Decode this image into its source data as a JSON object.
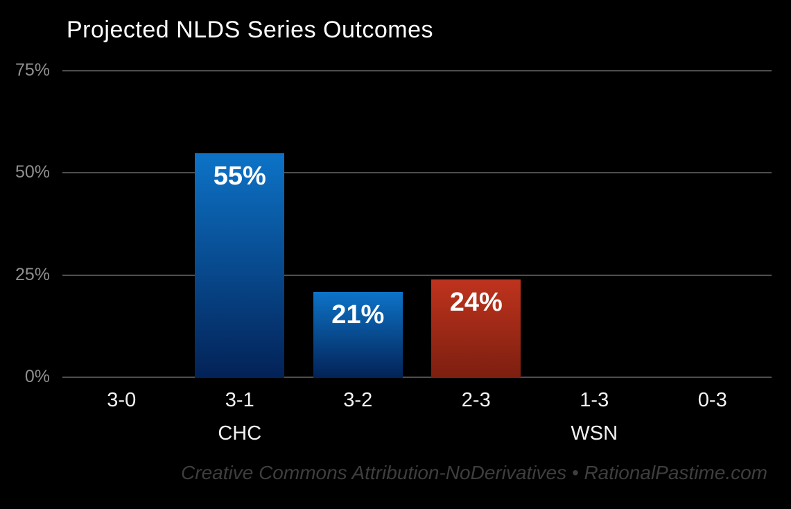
{
  "page": {
    "background_color": "#000000"
  },
  "chart_data": {
    "type": "bar",
    "title": "Projected NLDS Series Outcomes",
    "categories": [
      "3-0",
      "3-1",
      "3-2",
      "2-3",
      "1-3",
      "0-3"
    ],
    "values": [
      0,
      55,
      21,
      24,
      0,
      0
    ],
    "bars": [
      {
        "category": "3-1",
        "value": 55,
        "label": "55%",
        "team": "CHC",
        "color_top": "#0d73c7",
        "color_bottom": "#032257"
      },
      {
        "category": "3-2",
        "value": 21,
        "label": "21%",
        "team": "CHC",
        "color_top": "#0d73c7",
        "color_bottom": "#032257"
      },
      {
        "category": "2-3",
        "value": 24,
        "label": "24%",
        "team": "WSN",
        "color_top": "#bf331d",
        "color_bottom": "#7c1f10"
      }
    ],
    "y_ticks": [
      {
        "label": "75%",
        "value": 75
      },
      {
        "label": "50%",
        "value": 50
      },
      {
        "label": "25%",
        "value": 25
      },
      {
        "label": "0%",
        "value": 0
      }
    ],
    "ylim": [
      0,
      75
    ],
    "grid": true,
    "legend": "none",
    "xlabel": "",
    "ylabel": "",
    "group_labels": [
      {
        "label": "CHC",
        "category_index": 1
      },
      {
        "label": "WSN",
        "category_index": 4
      }
    ],
    "colors": {
      "grid": "#4f4f4f",
      "axis_tick_text": "#8f8f8f",
      "category_text": "#f2f2f2",
      "title_text": "#ffffff",
      "bar_label_text": "#ffffff"
    }
  },
  "footer": {
    "text": "Creative Commons Attribution-NoDerivatives • RationalPastime.com",
    "color": "#3e3e3e"
  }
}
